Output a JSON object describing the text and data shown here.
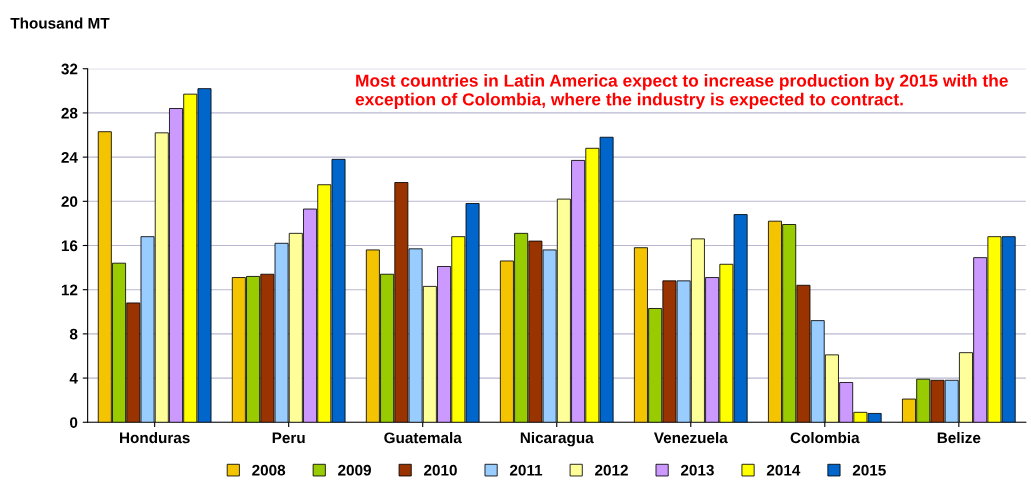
{
  "chart_data": {
    "type": "bar",
    "ylabel": "Thousand MT",
    "annotations": [
      "Most countries in Latin America expect to increase production by 2015 with the exception of Colombia, where the industry is expected to contract."
    ],
    "categories": [
      "Honduras",
      "Peru",
      "Guatemala",
      "Nicaragua",
      "Venezuela",
      "Colombia",
      "Belize"
    ],
    "series": [
      {
        "name": "2008",
        "color": "#f5c400",
        "values": [
          26.3,
          13.1,
          15.6,
          14.6,
          15.8,
          18.2,
          2.1
        ]
      },
      {
        "name": "2009",
        "color": "#99cc00",
        "values": [
          14.4,
          13.2,
          13.4,
          17.1,
          10.3,
          17.9,
          3.9
        ]
      },
      {
        "name": "2010",
        "color": "#993300",
        "values": [
          10.8,
          13.4,
          21.7,
          16.4,
          12.8,
          12.4,
          3.8
        ]
      },
      {
        "name": "2011",
        "color": "#99ccff",
        "values": [
          16.8,
          16.2,
          15.7,
          15.6,
          12.8,
          9.2,
          3.8
        ]
      },
      {
        "name": "2012",
        "color": "#ffff99",
        "values": [
          26.2,
          17.1,
          12.3,
          20.2,
          16.6,
          6.1,
          6.3
        ]
      },
      {
        "name": "2013",
        "color": "#cc99ff",
        "values": [
          28.4,
          19.3,
          14.1,
          23.7,
          13.1,
          3.6,
          14.9
        ]
      },
      {
        "name": "2014",
        "color": "#ffff00",
        "values": [
          29.7,
          21.5,
          16.8,
          24.8,
          14.3,
          0.9,
          16.8
        ]
      },
      {
        "name": "2015",
        "color": "#0066cc",
        "values": [
          30.2,
          23.8,
          19.8,
          25.8,
          18.8,
          0.8,
          16.8
        ]
      }
    ],
    "ylim": [
      0,
      32
    ],
    "yticks": [
      0,
      4,
      8,
      12,
      16,
      20,
      24,
      28,
      32
    ],
    "grid": "y",
    "legend": "bottom"
  }
}
